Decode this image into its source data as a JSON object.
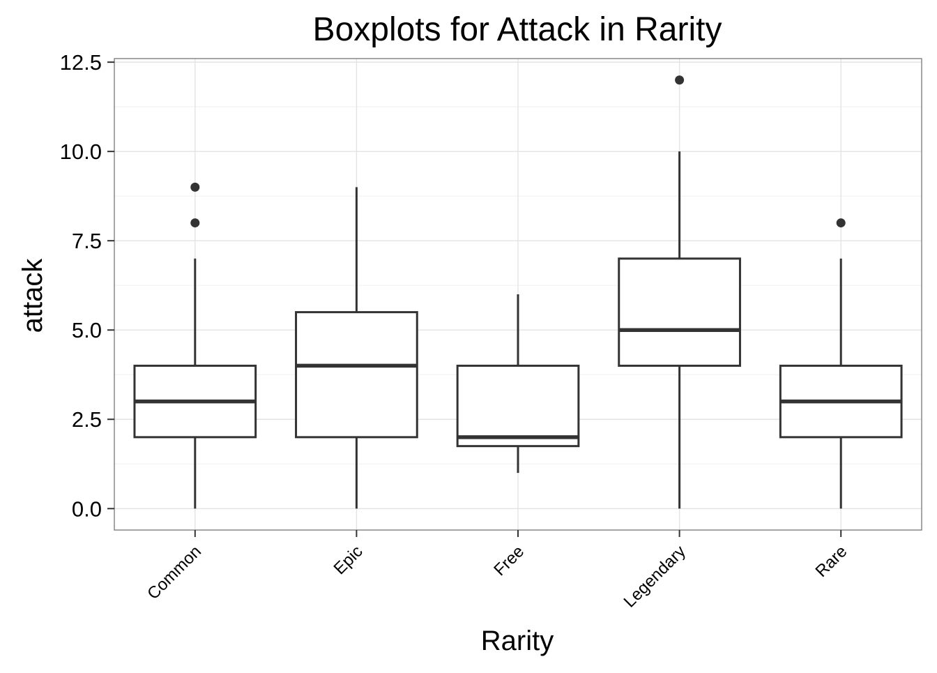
{
  "chart_data": {
    "type": "box",
    "title": "Boxplots for Attack in Rarity",
    "xlabel": "Rarity",
    "ylabel": "attack",
    "ylim": [
      -0.6,
      12.6
    ],
    "yticks": [
      {
        "value": 0.0,
        "label": "0.0"
      },
      {
        "value": 2.5,
        "label": "2.5"
      },
      {
        "value": 5.0,
        "label": "5.0"
      },
      {
        "value": 7.5,
        "label": "7.5"
      },
      {
        "value": 10.0,
        "label": "10.0"
      },
      {
        "value": 12.5,
        "label": "12.5"
      }
    ],
    "categories": [
      "Common",
      "Epic",
      "Free",
      "Legendary",
      "Rare"
    ],
    "boxes": [
      {
        "category": "Common",
        "min": 0,
        "q1": 2,
        "median": 3,
        "q3": 4,
        "max": 7,
        "outliers": [
          8,
          9
        ]
      },
      {
        "category": "Epic",
        "min": 0,
        "q1": 2,
        "median": 4,
        "q3": 5.5,
        "max": 9,
        "outliers": []
      },
      {
        "category": "Free",
        "min": 1,
        "q1": 1.75,
        "median": 2,
        "q3": 4,
        "max": 6,
        "outliers": []
      },
      {
        "category": "Legendary",
        "min": 0,
        "q1": 4,
        "median": 5,
        "q3": 7,
        "max": 10,
        "outliers": [
          12
        ]
      },
      {
        "category": "Rare",
        "min": 0,
        "q1": 2,
        "median": 3,
        "q3": 4,
        "max": 7,
        "outliers": [
          8
        ]
      }
    ],
    "grid": true,
    "legend": "none"
  }
}
